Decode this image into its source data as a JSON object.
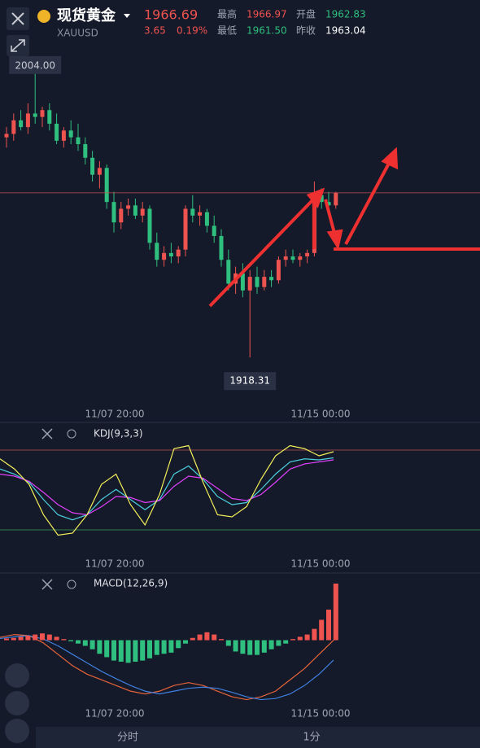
{
  "header": {
    "title": "现货黄金",
    "symbol": "XAUUSD",
    "price": "1966.69",
    "change": "3.65",
    "change_pct": "0.19%",
    "high_label": "最高",
    "high": "1966.97",
    "open_label": "开盘",
    "open": "1962.83",
    "low_label": "最低",
    "low": "1961.50",
    "prev_label": "昨收",
    "prev": "1963.04"
  },
  "main": {
    "type": "candlestick",
    "ylim": [
      1904,
      2009
    ],
    "max_label": "2004.00",
    "min_label": "1918.31",
    "xlabels": [
      "11/07 20:00",
      "11/15 00:00"
    ],
    "candles": [
      [
        1983,
        1986,
        1980,
        1984
      ],
      [
        1984,
        1990,
        1982,
        1988
      ],
      [
        1988,
        1991,
        1985,
        1986
      ],
      [
        1986,
        1993,
        1984,
        1990
      ],
      [
        1990,
        2004,
        1987,
        1989
      ],
      [
        1989,
        1992,
        1986,
        1991
      ],
      [
        1991,
        1993,
        1985,
        1987
      ],
      [
        1987,
        1990,
        1981,
        1982
      ],
      [
        1982,
        1986,
        1980,
        1985
      ],
      [
        1985,
        1988,
        1981,
        1983
      ],
      [
        1983,
        1987,
        1979,
        1981
      ],
      [
        1981,
        1983,
        1975,
        1977
      ],
      [
        1977,
        1979,
        1970,
        1972
      ],
      [
        1972,
        1976,
        1968,
        1974
      ],
      [
        1974,
        1975,
        1962,
        1964
      ],
      [
        1964,
        1967,
        1955,
        1958
      ],
      [
        1958,
        1964,
        1956,
        1962
      ],
      [
        1962,
        1965,
        1960,
        1963
      ],
      [
        1963,
        1965,
        1959,
        1960
      ],
      [
        1960,
        1964,
        1958,
        1962
      ],
      [
        1962,
        1963,
        1950,
        1952
      ],
      [
        1952,
        1955,
        1945,
        1947
      ],
      [
        1947,
        1951,
        1945,
        1949
      ],
      [
        1949,
        1952,
        1946,
        1948
      ],
      [
        1948,
        1951,
        1946,
        1950
      ],
      [
        1950,
        1963,
        1948,
        1962
      ],
      [
        1962,
        1966,
        1958,
        1960
      ],
      [
        1960,
        1963,
        1957,
        1961
      ],
      [
        1961,
        1962,
        1955,
        1957
      ],
      [
        1957,
        1960,
        1952,
        1954
      ],
      [
        1954,
        1956,
        1945,
        1947
      ],
      [
        1947,
        1950,
        1938,
        1940
      ],
      [
        1940,
        1945,
        1937,
        1943
      ],
      [
        1943,
        1946,
        1936,
        1938
      ],
      [
        1938,
        1944,
        1918.31,
        1942
      ],
      [
        1942,
        1945,
        1937,
        1939
      ],
      [
        1939,
        1944,
        1938,
        1942
      ],
      [
        1942,
        1944,
        1939,
        1941
      ],
      [
        1941,
        1948,
        1940,
        1947
      ],
      [
        1947,
        1950,
        1945,
        1948
      ],
      [
        1948,
        1950,
        1946,
        1947
      ],
      [
        1947,
        1949,
        1945,
        1948
      ],
      [
        1948,
        1950,
        1946,
        1949
      ],
      [
        1949,
        1970,
        1948,
        1966
      ],
      [
        1966,
        1968,
        1962,
        1964
      ],
      [
        1964,
        1967,
        1961,
        1963
      ],
      [
        1963,
        1967,
        1962,
        1966.69
      ]
    ]
  },
  "kdj": {
    "type": "line",
    "title": "KDJ(9,3,3)",
    "ylim": [
      0,
      100
    ],
    "xlabels": [
      "11/07 20:00",
      "11/15 00:00"
    ],
    "series": [
      {
        "color": "#4dd0e1",
        "values": [
          75,
          70,
          62,
          45,
          30,
          25,
          30,
          45,
          55,
          45,
          35,
          45,
          70,
          78,
          65,
          48,
          40,
          42,
          55,
          70,
          82,
          85,
          84,
          86
        ]
      },
      {
        "color": "#e040fb",
        "values": [
          70,
          68,
          63,
          52,
          40,
          32,
          30,
          38,
          48,
          47,
          42,
          44,
          58,
          68,
          66,
          56,
          46,
          44,
          50,
          62,
          75,
          80,
          82,
          84
        ]
      },
      {
        "color": "#f4f05a",
        "values": [
          85,
          75,
          60,
          30,
          10,
          12,
          30,
          60,
          70,
          40,
          20,
          50,
          95,
          98,
          62,
          30,
          28,
          38,
          65,
          88,
          98,
          95,
          88,
          92
        ]
      }
    ]
  },
  "macd": {
    "type": "bar",
    "title": "MACD(12,26,9)",
    "ylim": [
      -12,
      10
    ],
    "xlabels": [
      "11/07 20:00",
      "11/15 00:00"
    ],
    "up_color": "#ef5350",
    "down_color": "#2fbf7f",
    "values": [
      0.3,
      0.4,
      0.6,
      0.8,
      1.0,
      1.2,
      1.0,
      0.6,
      0.2,
      -0.2,
      -0.6,
      -1.0,
      -1.6,
      -2.4,
      -3.0,
      -3.6,
      -3.8,
      -4.0,
      -3.8,
      -3.6,
      -3.2,
      -2.6,
      -2.4,
      -2.2,
      -1.4,
      -0.6,
      0.4,
      1.0,
      1.4,
      1.0,
      0.2,
      -1.0,
      -2.0,
      -2.4,
      -2.6,
      -2.6,
      -2.2,
      -1.6,
      -1.0,
      -0.6,
      0.2,
      0.6,
      1.0,
      2.0,
      3.6,
      5.4,
      10.0
    ],
    "series": [
      {
        "color": "#e8643a",
        "values": [
          0.5,
          1.0,
          0.8,
          -0.5,
          -2.5,
          -4.5,
          -6,
          -7,
          -8,
          -9,
          -9.5,
          -9,
          -8,
          -7.5,
          -8,
          -9,
          -10,
          -10.5,
          -10,
          -9,
          -7,
          -5,
          -2.5,
          0
        ]
      },
      {
        "color": "#3f7fe0",
        "values": [
          0.3,
          0.6,
          0.8,
          0.2,
          -1,
          -2.5,
          -4,
          -5.5,
          -6.8,
          -8,
          -9,
          -9.5,
          -9,
          -8.5,
          -8.3,
          -8.5,
          -9.2,
          -10,
          -10.5,
          -10.3,
          -9.5,
          -8,
          -6,
          -3.5
        ]
      }
    ]
  },
  "footer": {
    "tabs": [
      "分时",
      "1分"
    ]
  }
}
